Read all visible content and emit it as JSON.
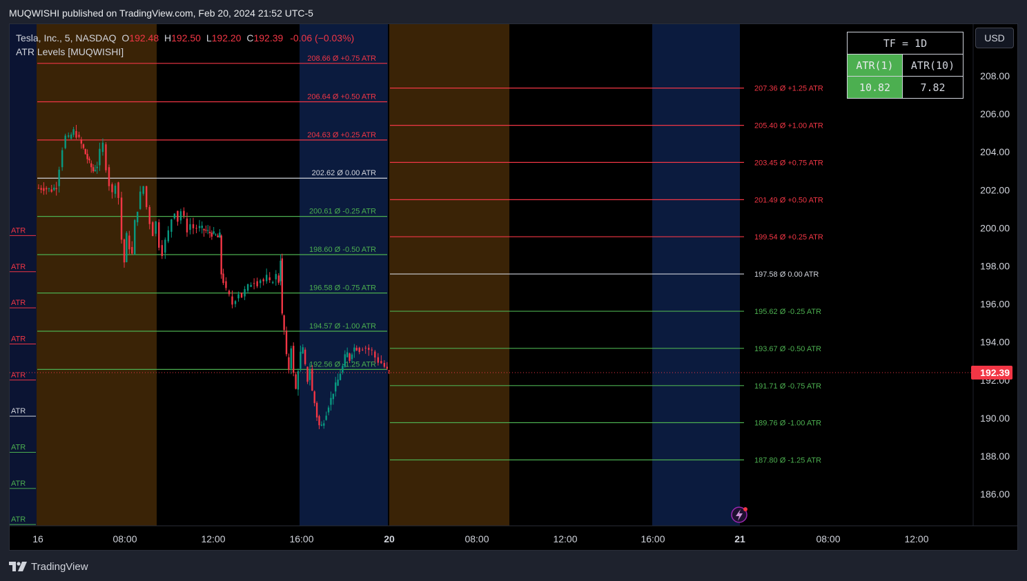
{
  "header": {
    "published_line": "MUQWISHI published on TradingView.com, Feb 20, 2024 21:52 UTC-5"
  },
  "legend": {
    "symbol": "Tesla, Inc., 5, NASDAQ",
    "o_label": "O",
    "o_value": "192.48",
    "h_label": "H",
    "h_value": "192.50",
    "l_label": "L",
    "l_value": "192.20",
    "c_label": "C",
    "c_value": "192.39",
    "change": "-0.06 (−0.03%)",
    "indicator": "ATR Levels [MUQWISHI]"
  },
  "atr_table": {
    "tf": "TF = 1D",
    "atr1_label": "ATR(1)",
    "atr10_label": "ATR(10)",
    "atr1_value": "10.82",
    "atr10_value": "7.82"
  },
  "currency_button": "USD",
  "footer": {
    "brand": "TradingView"
  },
  "colors": {
    "bg": "#000000",
    "up": "#089981",
    "down": "#f23645",
    "level_up": "#f23645",
    "level_down": "#4caf50",
    "level_zero": "#d1d4dc",
    "session_asia": "#3a2306",
    "session_ny": "#0b1b3e",
    "premarket": "#0b1433",
    "table_green": "#4caf50",
    "price_tag": "#f23645"
  },
  "chart_data": {
    "type": "candlestick",
    "ylim": [
      184.4,
      210.8
    ],
    "y_ticks": [
      "208.00",
      "206.00",
      "204.00",
      "202.00",
      "200.00",
      "198.00",
      "196.00",
      "194.00",
      "192.00",
      "190.00",
      "188.00",
      "186.00"
    ],
    "x_ticks": [
      "16",
      "08:00",
      "12:00",
      "16:00",
      "20",
      "08:00",
      "12:00",
      "16:00",
      "21",
      "08:00",
      "12:00"
    ],
    "last_price": "192.39",
    "day1_levels": [
      {
        "value": 208.66,
        "label": "208.66 Ø +0.75 ATR",
        "kind": "up"
      },
      {
        "value": 206.64,
        "label": "206.64 Ø +0.50 ATR",
        "kind": "up"
      },
      {
        "value": 204.63,
        "label": "204.63 Ø +0.25 ATR",
        "kind": "up"
      },
      {
        "value": 202.62,
        "label": "202.62 Ø 0.00 ATR",
        "kind": "zero"
      },
      {
        "value": 200.61,
        "label": "200.61 Ø -0.25 ATR",
        "kind": "down"
      },
      {
        "value": 198.6,
        "label": "198.60 Ø -0.50 ATR",
        "kind": "down"
      },
      {
        "value": 196.58,
        "label": "196.58 Ø -0.75 ATR",
        "kind": "down"
      },
      {
        "value": 194.57,
        "label": "194.57 Ø -1.00 ATR",
        "kind": "down"
      },
      {
        "value": 192.56,
        "label": "192.56 Ø -1.25 ATR",
        "kind": "down"
      }
    ],
    "day2_levels": [
      {
        "value": 207.36,
        "label": "207.36 Ø +1.25 ATR",
        "kind": "up"
      },
      {
        "value": 205.4,
        "label": "205.40 Ø +1.00 ATR",
        "kind": "up"
      },
      {
        "value": 203.45,
        "label": "203.45 Ø +0.75 ATR",
        "kind": "up"
      },
      {
        "value": 201.49,
        "label": "201.49 Ø +0.50 ATR",
        "kind": "up"
      },
      {
        "value": 199.54,
        "label": "199.54 Ø +0.25 ATR",
        "kind": "up"
      },
      {
        "value": 197.58,
        "label": "197.58 Ø 0.00 ATR",
        "kind": "zero"
      },
      {
        "value": 195.62,
        "label": "195.62 Ø -0.25 ATR",
        "kind": "down"
      },
      {
        "value": 193.67,
        "label": "193.67 Ø -0.50 ATR",
        "kind": "down"
      },
      {
        "value": 191.71,
        "label": "191.71 Ø -0.75 ATR",
        "kind": "down"
      },
      {
        "value": 189.76,
        "label": "189.76 Ø -1.00 ATR",
        "kind": "down"
      },
      {
        "value": 187.8,
        "label": "187.80 Ø -1.25 ATR",
        "kind": "down"
      }
    ],
    "left_marker_label": "ATR",
    "left_markers": [
      {
        "value": 199.6,
        "kind": "up"
      },
      {
        "value": 197.7,
        "kind": "up"
      },
      {
        "value": 195.8,
        "kind": "up"
      },
      {
        "value": 193.9,
        "kind": "up"
      },
      {
        "value": 192.0,
        "kind": "up"
      },
      {
        "value": 190.1,
        "kind": "zero"
      },
      {
        "value": 188.2,
        "kind": "down"
      },
      {
        "value": 186.3,
        "kind": "down"
      },
      {
        "value": 184.4,
        "kind": "down"
      }
    ],
    "price_path": [
      [
        0,
        202.1
      ],
      [
        1,
        202.1
      ],
      [
        2,
        202.0
      ],
      [
        2.6,
        202.2
      ],
      [
        3.0,
        203.2
      ],
      [
        3.4,
        204.2
      ],
      [
        3.8,
        204.8
      ],
      [
        4.2,
        204.7
      ],
      [
        4.8,
        205.1
      ],
      [
        5.2,
        204.9
      ],
      [
        5.8,
        204.4
      ],
      [
        6.3,
        203.9
      ],
      [
        6.8,
        203.4
      ],
      [
        7.3,
        203.0
      ],
      [
        7.8,
        203.3
      ],
      [
        8.2,
        204.0
      ],
      [
        8.6,
        204.4
      ],
      [
        9.0,
        203.2
      ],
      [
        9.4,
        202.3
      ],
      [
        9.8,
        201.8
      ],
      [
        10.2,
        202.4
      ],
      [
        10.6,
        201.6
      ],
      [
        11.0,
        199.4
      ],
      [
        11.3,
        198.2
      ],
      [
        11.6,
        199.6
      ],
      [
        12.0,
        199.0
      ],
      [
        12.3,
        198.6
      ],
      [
        12.7,
        200.3
      ],
      [
        13.0,
        201.0
      ],
      [
        13.4,
        201.8
      ],
      [
        13.8,
        202.2
      ],
      [
        14.2,
        201.1
      ],
      [
        14.6,
        200.3
      ],
      [
        15.0,
        199.7
      ],
      [
        15.4,
        200.3
      ],
      [
        15.8,
        199.1
      ],
      [
        16.2,
        198.7
      ],
      [
        16.6,
        199.3
      ],
      [
        17.0,
        199.8
      ],
      [
        17.4,
        200.5
      ],
      [
        17.8,
        200.9
      ],
      [
        18.2,
        200.4
      ],
      [
        18.6,
        200.9
      ],
      [
        19.0,
        200.5
      ],
      [
        19.4,
        199.9
      ],
      [
        19.8,
        200.2
      ],
      [
        20.2,
        200.0
      ],
      [
        20.6,
        200.0
      ],
      [
        21.0,
        200.0
      ],
      [
        21.5,
        199.9
      ],
      [
        22.0,
        199.8
      ],
      [
        22.5,
        199.7
      ],
      [
        23.0,
        199.6
      ],
      [
        23.3,
        199.5
      ],
      [
        23.5,
        199.6
      ],
      [
        23.7,
        197.6
      ],
      [
        24.0,
        197.2
      ],
      [
        24.4,
        196.7
      ],
      [
        24.8,
        196.4
      ],
      [
        25.2,
        196.0
      ],
      [
        25.6,
        196.3
      ],
      [
        26.0,
        196.6
      ],
      [
        26.4,
        196.4
      ],
      [
        26.8,
        196.7
      ],
      [
        27.2,
        196.9
      ],
      [
        27.6,
        197.1
      ],
      [
        28.0,
        197.2
      ],
      [
        28.4,
        197.1
      ],
      [
        28.8,
        197.3
      ],
      [
        29.2,
        197.2
      ],
      [
        29.6,
        197.4
      ],
      [
        30.0,
        197.1
      ],
      [
        30.4,
        197.3
      ],
      [
        30.8,
        197.5
      ],
      [
        31.1,
        197.2
      ],
      [
        31.3,
        198.4
      ],
      [
        31.5,
        195.4
      ],
      [
        31.8,
        194.6
      ],
      [
        32.1,
        193.2
      ],
      [
        32.4,
        192.6
      ],
      [
        32.7,
        193.8
      ],
      [
        33.0,
        192.3
      ],
      [
        33.3,
        191.5
      ],
      [
        33.6,
        192.6
      ],
      [
        33.9,
        193.4
      ],
      [
        34.2,
        193.6
      ],
      [
        34.5,
        192.7
      ],
      [
        34.8,
        192.0
      ],
      [
        35.1,
        192.6
      ],
      [
        35.4,
        191.4
      ],
      [
        35.7,
        190.8
      ],
      [
        36.0,
        190.1
      ],
      [
        36.3,
        189.6
      ],
      [
        36.6,
        189.6
      ],
      [
        36.9,
        189.9
      ],
      [
        37.2,
        190.3
      ],
      [
        37.5,
        190.7
      ],
      [
        37.8,
        191.0
      ],
      [
        38.1,
        191.4
      ],
      [
        38.4,
        191.7
      ],
      [
        38.7,
        192.0
      ],
      [
        39.0,
        192.4
      ],
      [
        39.3,
        192.7
      ],
      [
        39.6,
        193.2
      ],
      [
        39.9,
        193.4
      ],
      [
        40.2,
        193.1
      ],
      [
        40.5,
        193.5
      ],
      [
        40.8,
        193.7
      ],
      [
        41.1,
        193.7
      ],
      [
        41.5,
        193.6
      ],
      [
        41.9,
        193.7
      ],
      [
        42.3,
        193.7
      ],
      [
        42.7,
        193.6
      ],
      [
        43.1,
        193.5
      ],
      [
        43.5,
        193.2
      ],
      [
        43.9,
        193.0
      ],
      [
        44.3,
        192.9
      ],
      [
        44.7,
        192.7
      ],
      [
        45.0,
        192.5
      ],
      [
        45.2,
        192.4
      ]
    ]
  }
}
